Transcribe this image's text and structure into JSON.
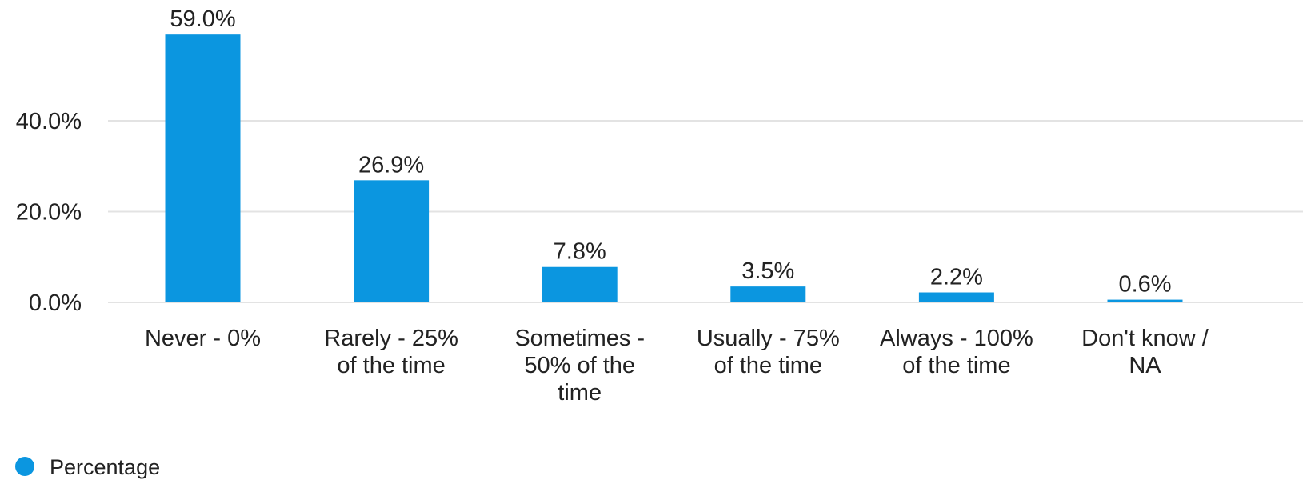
{
  "chart_data": {
    "type": "bar",
    "categories": [
      "Never - 0%",
      "Rarely - 25% of the time",
      "Sometimes - 50% of the time",
      "Usually - 75% of the time",
      "Always - 100% of the time",
      "Don't know / NA"
    ],
    "category_lines": [
      [
        "Never - 0%"
      ],
      [
        "Rarely - 25%",
        "of the time"
      ],
      [
        "Sometimes -",
        "50% of the",
        "time"
      ],
      [
        "Usually - 75%",
        "of the time"
      ],
      [
        "Always - 100%",
        "of the time"
      ],
      [
        "Don't know /",
        "NA"
      ]
    ],
    "series": [
      {
        "name": "Percentage",
        "values": [
          59.0,
          26.9,
          7.8,
          3.5,
          2.2,
          0.6
        ],
        "labels": [
          "59.0%",
          "26.9%",
          "7.8%",
          "3.5%",
          "2.2%",
          "0.6%"
        ],
        "color": "#0b96e0"
      }
    ],
    "yticks": [
      0,
      20,
      40
    ],
    "ytick_labels": [
      "0.0%",
      "20.0%",
      "40.0%"
    ],
    "ylim": [
      0,
      60
    ],
    "grid": true,
    "legend": "bottom-left"
  }
}
